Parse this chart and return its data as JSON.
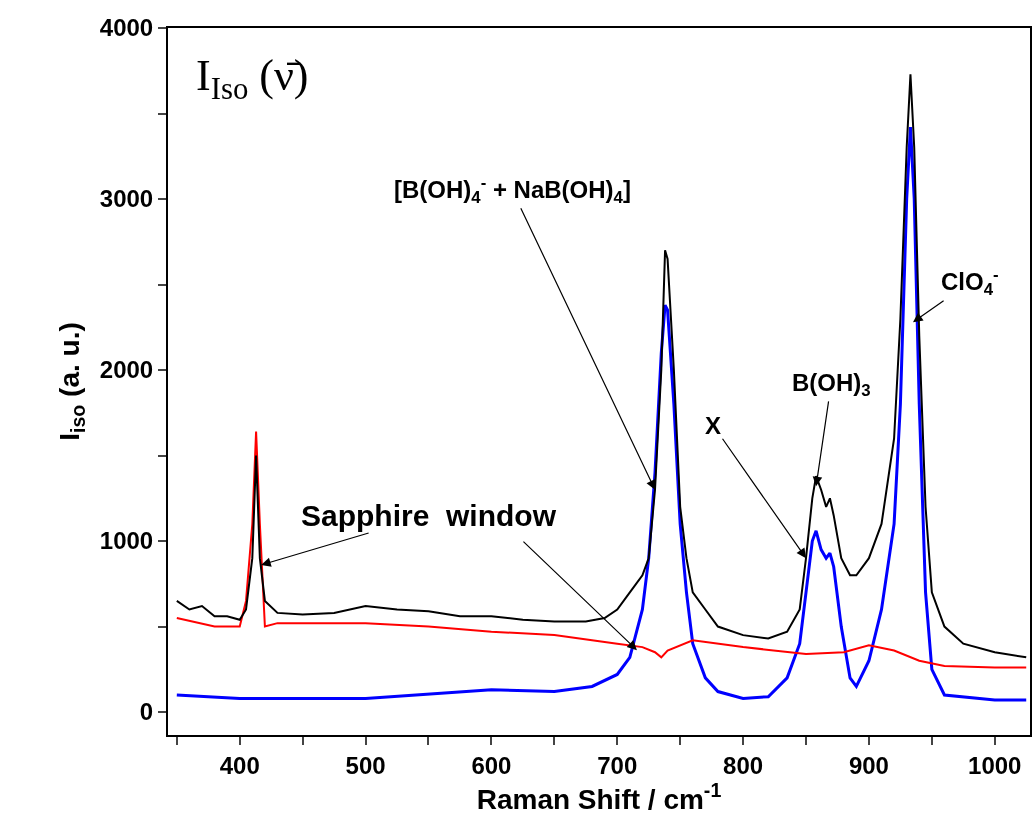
{
  "chart_data": {
    "type": "line",
    "xlabel": "Raman Shift / cm$^{-1}$",
    "ylabel": "I$_{iso}$ (a. u.)",
    "xlim": [
      343,
      1028
    ],
    "ylim": [
      -134,
      4000
    ],
    "xticks": [
      {
        "value": 350,
        "label": null
      },
      400,
      {
        "value": 450,
        "label": null
      },
      500,
      {
        "value": 550,
        "label": null
      },
      600,
      {
        "value": 650,
        "label": null
      },
      700,
      {
        "value": 750,
        "label": null
      },
      800,
      {
        "value": 850,
        "label": null
      },
      900,
      {
        "value": 950,
        "label": null
      },
      1000
    ],
    "yticks": [
      0,
      {
        "value": 500,
        "label": null
      },
      1000,
      {
        "value": 1500,
        "label": null
      },
      2000,
      {
        "value": 2500,
        "label": null
      },
      3000,
      {
        "value": 3500,
        "label": null
      },
      4000
    ],
    "marker": "none",
    "line_style": "solid",
    "series": [
      {
        "color": "#000000",
        "x": [
          350,
          360,
          370,
          380,
          390,
          400,
          405,
          410,
          413,
          416,
          420,
          430,
          450,
          475,
          500,
          525,
          550,
          575,
          600,
          625,
          650,
          675,
          690,
          700,
          710,
          720,
          725,
          730,
          735,
          738,
          740,
          745,
          750,
          755,
          760,
          770,
          780,
          800,
          820,
          835,
          845,
          850,
          855,
          858,
          862,
          866,
          869,
          872,
          878,
          885,
          890,
          900,
          910,
          920,
          925,
          930,
          933,
          936,
          940,
          945,
          950,
          960,
          975,
          1000,
          1025
        ],
        "values": [
          650,
          600,
          620,
          560,
          560,
          540,
          600,
          900,
          1500,
          900,
          650,
          580,
          570,
          580,
          620,
          600,
          590,
          560,
          560,
          540,
          530,
          530,
          550,
          600,
          700,
          800,
          900,
          1300,
          2000,
          2700,
          2650,
          2000,
          1200,
          900,
          700,
          600,
          500,
          450,
          430,
          470,
          600,
          900,
          1250,
          1380,
          1300,
          1200,
          1250,
          1150,
          900,
          800,
          800,
          900,
          1100,
          1600,
          2300,
          3300,
          3730,
          3300,
          2200,
          1200,
          700,
          500,
          400,
          350,
          320
        ]
      },
      {
        "color": "#ff0000",
        "x": [
          350,
          380,
          400,
          405,
          410,
          413,
          416,
          420,
          430,
          500,
          550,
          600,
          650,
          700,
          720,
          730,
          735,
          740,
          760,
          800,
          850,
          880,
          900,
          920,
          940,
          960,
          1000,
          1025
        ],
        "values": [
          550,
          500,
          500,
          650,
          1100,
          1640,
          1100,
          500,
          520,
          520,
          500,
          470,
          450,
          400,
          380,
          350,
          320,
          360,
          420,
          380,
          340,
          350,
          390,
          360,
          300,
          270,
          260,
          260
        ]
      },
      {
        "color": "#0000ff",
        "x": [
          350,
          400,
          500,
          600,
          650,
          680,
          700,
          710,
          720,
          725,
          730,
          735,
          738,
          740,
          745,
          750,
          755,
          760,
          770,
          780,
          800,
          820,
          835,
          845,
          850,
          855,
          858,
          862,
          866,
          869,
          872,
          878,
          885,
          890,
          900,
          910,
          920,
          925,
          930,
          933,
          936,
          940,
          945,
          950,
          960,
          1000,
          1025
        ],
        "values": [
          100,
          80,
          80,
          130,
          120,
          150,
          220,
          320,
          600,
          900,
          1400,
          2100,
          2380,
          2350,
          1800,
          1100,
          700,
          400,
          200,
          120,
          80,
          90,
          200,
          400,
          700,
          1000,
          1060,
          950,
          900,
          930,
          850,
          500,
          200,
          150,
          300,
          600,
          1100,
          1800,
          3000,
          3420,
          3000,
          1800,
          700,
          250,
          100,
          70,
          70
        ]
      }
    ],
    "annotations": [
      "I$_{Iso}$ (ν̄)",
      {
        "text": "[B(OH)$_{4}$$^{-}$ + NaB(OH)$_{4}$]",
        "x": 730,
        "y": 1300
      },
      {
        "text": "X",
        "x": 850,
        "y": 900
      },
      {
        "text": "B(OH)$_{3}$",
        "x": 858,
        "y": 1320
      },
      {
        "text": "ClO$_{4}$$^{-}$",
        "x": 935,
        "y": 2280
      },
      {
        "text": "Sapphire  window",
        "x": 417,
        "y": 860
      }
    ]
  }
}
